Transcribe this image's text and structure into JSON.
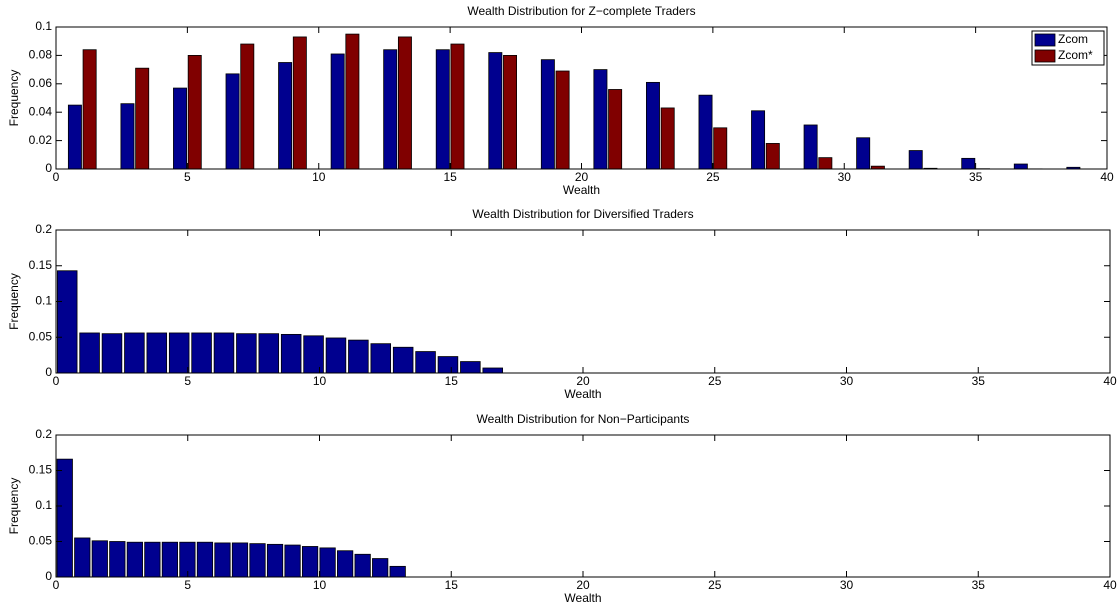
{
  "chart_data": [
    {
      "type": "bar",
      "title": "Wealth Distribution for Z−complete Traders",
      "xlabel": "Wealth",
      "ylabel": "Frequency",
      "x": [
        1,
        3,
        5,
        7,
        9,
        11,
        13,
        15,
        17,
        19,
        21,
        23,
        25,
        27,
        29,
        31,
        33,
        35,
        37,
        39
      ],
      "series": [
        {
          "name": "Zcom",
          "color": "#00008f",
          "values": [
            0.045,
            0.046,
            0.057,
            0.067,
            0.075,
            0.081,
            0.084,
            0.084,
            0.082,
            0.077,
            0.07,
            0.061,
            0.052,
            0.041,
            0.031,
            0.022,
            0.013,
            0.0075,
            0.0035,
            0.0012
          ]
        },
        {
          "name": "Zcom*",
          "color": "#800000",
          "values": [
            0.084,
            0.071,
            0.08,
            0.088,
            0.093,
            0.095,
            0.093,
            0.088,
            0.08,
            0.069,
            0.056,
            0.043,
            0.029,
            0.018,
            0.008,
            0.002,
            0.0005,
            0.0002,
            0.0001,
            0
          ]
        }
      ],
      "xlim": [
        0,
        40
      ],
      "xticks": [
        0,
        5,
        10,
        15,
        20,
        25,
        30,
        35,
        40
      ],
      "ylim": [
        0,
        0.1
      ],
      "yticks": [
        0,
        0.02,
        0.04,
        0.06,
        0.08,
        0.1
      ],
      "legend": "upper right"
    },
    {
      "type": "histogram",
      "title": "Wealth Distribution for Diversified Traders",
      "xlabel": "Wealth",
      "ylabel": "Frequency",
      "color": "#00008f",
      "bins": [
        0,
        0.85,
        1.7,
        2.55,
        3.4,
        4.25,
        5.1,
        5.95,
        6.8,
        7.65,
        8.5,
        9.35,
        10.2,
        11.05,
        11.9,
        12.75,
        13.6,
        14.45,
        15.3,
        16.15,
        17
      ],
      "values": [
        0.143,
        0.056,
        0.055,
        0.056,
        0.056,
        0.056,
        0.056,
        0.056,
        0.055,
        0.055,
        0.054,
        0.052,
        0.049,
        0.046,
        0.041,
        0.036,
        0.03,
        0.023,
        0.016,
        0.007
      ],
      "xlim": [
        0,
        40
      ],
      "xticks": [
        0,
        5,
        10,
        15,
        20,
        25,
        30,
        35,
        40
      ],
      "ylim": [
        0,
        0.2
      ],
      "yticks": [
        0,
        0.05,
        0.1,
        0.15,
        0.2
      ]
    },
    {
      "type": "histogram",
      "title": "Wealth Distribution for Non−Participants",
      "xlabel": "Wealth",
      "ylabel": "Frequency",
      "color": "#00008f",
      "bins": [
        0,
        0.665,
        1.33,
        1.995,
        2.66,
        3.325,
        3.99,
        4.655,
        5.32,
        5.985,
        6.65,
        7.315,
        7.98,
        8.645,
        9.31,
        9.975,
        10.64,
        11.305,
        11.97,
        12.635,
        13.3
      ],
      "values": [
        0.166,
        0.055,
        0.051,
        0.05,
        0.049,
        0.049,
        0.049,
        0.049,
        0.049,
        0.048,
        0.048,
        0.047,
        0.046,
        0.045,
        0.043,
        0.041,
        0.037,
        0.032,
        0.026,
        0.015
      ],
      "xlim": [
        0,
        40
      ],
      "xticks": [
        0,
        5,
        10,
        15,
        20,
        25,
        30,
        35,
        40
      ],
      "ylim": [
        0,
        0.2
      ],
      "yticks": [
        0,
        0.05,
        0.1,
        0.15,
        0.2
      ]
    }
  ]
}
